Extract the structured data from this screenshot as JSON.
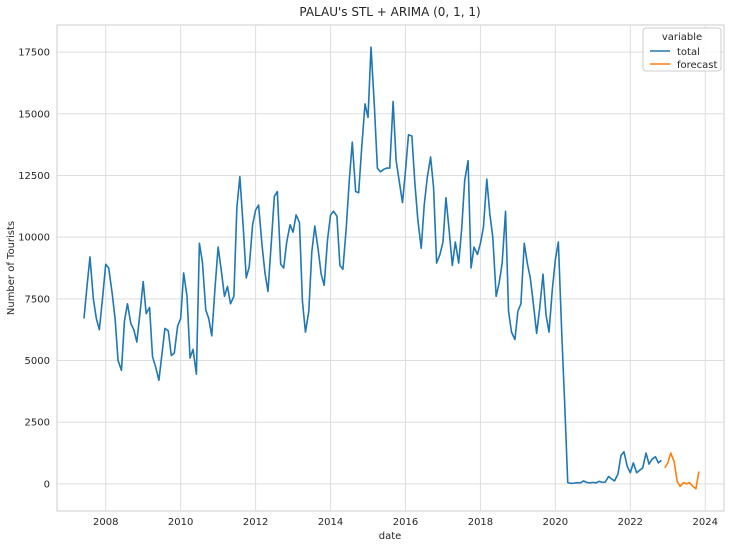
{
  "chart_data": {
    "type": "line",
    "title": "PALAU's STL + ARIMA (0, 1, 1)",
    "xlabel": "date",
    "ylabel": "Number of Tourists",
    "xlim": [
      2006.7,
      2024.5
    ],
    "ylim": [
      -1100,
      18600
    ],
    "x_ticks": [
      2008,
      2010,
      2012,
      2014,
      2016,
      2018,
      2020,
      2022,
      2024
    ],
    "y_ticks": [
      0,
      2500,
      5000,
      7500,
      10000,
      12500,
      15000,
      17500
    ],
    "grid": true,
    "legend": {
      "title": "variable",
      "placement": "top-right"
    },
    "series": [
      {
        "name": "total",
        "color": "#1f77b4",
        "points": [
          [
            2007.42,
            6700
          ],
          [
            2007.5,
            8000
          ],
          [
            2007.58,
            9200
          ],
          [
            2007.67,
            7500
          ],
          [
            2007.75,
            6700
          ],
          [
            2007.83,
            6250
          ],
          [
            2007.92,
            7600
          ],
          [
            2008.0,
            8900
          ],
          [
            2008.08,
            8750
          ],
          [
            2008.17,
            7750
          ],
          [
            2008.25,
            6700
          ],
          [
            2008.33,
            5000
          ],
          [
            2008.42,
            4600
          ],
          [
            2008.5,
            6600
          ],
          [
            2008.58,
            7300
          ],
          [
            2008.67,
            6500
          ],
          [
            2008.75,
            6250
          ],
          [
            2008.83,
            5750
          ],
          [
            2008.92,
            7000
          ],
          [
            2009.0,
            8200
          ],
          [
            2009.08,
            6900
          ],
          [
            2009.17,
            7150
          ],
          [
            2009.25,
            5150
          ],
          [
            2009.33,
            4750
          ],
          [
            2009.42,
            4200
          ],
          [
            2009.5,
            5250
          ],
          [
            2009.58,
            6300
          ],
          [
            2009.67,
            6200
          ],
          [
            2009.75,
            5200
          ],
          [
            2009.83,
            5300
          ],
          [
            2009.92,
            6400
          ],
          [
            2010.0,
            6700
          ],
          [
            2010.08,
            8550
          ],
          [
            2010.17,
            7600
          ],
          [
            2010.25,
            5100
          ],
          [
            2010.33,
            5450
          ],
          [
            2010.42,
            4450
          ],
          [
            2010.5,
            9750
          ],
          [
            2010.58,
            9000
          ],
          [
            2010.67,
            7050
          ],
          [
            2010.75,
            6700
          ],
          [
            2010.83,
            6000
          ],
          [
            2010.92,
            8000
          ],
          [
            2011.0,
            9600
          ],
          [
            2011.08,
            8700
          ],
          [
            2011.17,
            7600
          ],
          [
            2011.25,
            8000
          ],
          [
            2011.33,
            7300
          ],
          [
            2011.42,
            7600
          ],
          [
            2011.5,
            11200
          ],
          [
            2011.58,
            12450
          ],
          [
            2011.67,
            10400
          ],
          [
            2011.75,
            8350
          ],
          [
            2011.83,
            8800
          ],
          [
            2011.92,
            10500
          ],
          [
            2012.0,
            11100
          ],
          [
            2012.08,
            11300
          ],
          [
            2012.17,
            9700
          ],
          [
            2012.25,
            8550
          ],
          [
            2012.33,
            7800
          ],
          [
            2012.42,
            9800
          ],
          [
            2012.5,
            11650
          ],
          [
            2012.58,
            11850
          ],
          [
            2012.67,
            8900
          ],
          [
            2012.75,
            8750
          ],
          [
            2012.83,
            9800
          ],
          [
            2012.92,
            10500
          ],
          [
            2013.0,
            10200
          ],
          [
            2013.08,
            10900
          ],
          [
            2013.17,
            10600
          ],
          [
            2013.25,
            7400
          ],
          [
            2013.33,
            6150
          ],
          [
            2013.42,
            7000
          ],
          [
            2013.5,
            9400
          ],
          [
            2013.58,
            10450
          ],
          [
            2013.67,
            9500
          ],
          [
            2013.75,
            8500
          ],
          [
            2013.83,
            8050
          ],
          [
            2013.92,
            9900
          ],
          [
            2014.0,
            10900
          ],
          [
            2014.08,
            11050
          ],
          [
            2014.17,
            10850
          ],
          [
            2014.25,
            8850
          ],
          [
            2014.33,
            8700
          ],
          [
            2014.42,
            10400
          ],
          [
            2014.5,
            12300
          ],
          [
            2014.58,
            13850
          ],
          [
            2014.67,
            11850
          ],
          [
            2014.75,
            11800
          ],
          [
            2014.83,
            13600
          ],
          [
            2014.92,
            15400
          ],
          [
            2015.0,
            14850
          ],
          [
            2015.08,
            17700
          ],
          [
            2015.17,
            15300
          ],
          [
            2015.25,
            12800
          ],
          [
            2015.33,
            12650
          ],
          [
            2015.42,
            12750
          ],
          [
            2015.5,
            12800
          ],
          [
            2015.58,
            12800
          ],
          [
            2015.67,
            15500
          ],
          [
            2015.75,
            13100
          ],
          [
            2015.83,
            12300
          ],
          [
            2015.92,
            11400
          ],
          [
            2016.0,
            12700
          ],
          [
            2016.08,
            14150
          ],
          [
            2016.17,
            14100
          ],
          [
            2016.25,
            12200
          ],
          [
            2016.33,
            10700
          ],
          [
            2016.42,
            9550
          ],
          [
            2016.5,
            11300
          ],
          [
            2016.58,
            12400
          ],
          [
            2016.67,
            13250
          ],
          [
            2016.75,
            12000
          ],
          [
            2016.83,
            8950
          ],
          [
            2016.92,
            9300
          ],
          [
            2017.0,
            9800
          ],
          [
            2017.08,
            11600
          ],
          [
            2017.17,
            10200
          ],
          [
            2017.25,
            8850
          ],
          [
            2017.33,
            9800
          ],
          [
            2017.42,
            8950
          ],
          [
            2017.5,
            10350
          ],
          [
            2017.58,
            12300
          ],
          [
            2017.67,
            13100
          ],
          [
            2017.75,
            8750
          ],
          [
            2017.83,
            9600
          ],
          [
            2017.92,
            9300
          ],
          [
            2018.0,
            9750
          ],
          [
            2018.08,
            10400
          ],
          [
            2018.17,
            12350
          ],
          [
            2018.25,
            10950
          ],
          [
            2018.33,
            10000
          ],
          [
            2018.42,
            7600
          ],
          [
            2018.5,
            8150
          ],
          [
            2018.58,
            8950
          ],
          [
            2018.67,
            11050
          ],
          [
            2018.75,
            7000
          ],
          [
            2018.83,
            6150
          ],
          [
            2018.92,
            5850
          ],
          [
            2019.0,
            7000
          ],
          [
            2019.08,
            7300
          ],
          [
            2019.17,
            9750
          ],
          [
            2019.25,
            8950
          ],
          [
            2019.33,
            8350
          ],
          [
            2019.42,
            7200
          ],
          [
            2019.5,
            6100
          ],
          [
            2019.58,
            7100
          ],
          [
            2019.67,
            8500
          ],
          [
            2019.75,
            6850
          ],
          [
            2019.83,
            6150
          ],
          [
            2019.92,
            7900
          ],
          [
            2020.0,
            9100
          ],
          [
            2020.08,
            9800
          ],
          [
            2020.17,
            6100
          ],
          [
            2020.25,
            3200
          ],
          [
            2020.33,
            50
          ],
          [
            2020.42,
            20
          ],
          [
            2020.5,
            30
          ],
          [
            2020.58,
            50
          ],
          [
            2020.67,
            40
          ],
          [
            2020.75,
            120
          ],
          [
            2020.83,
            60
          ],
          [
            2020.92,
            40
          ],
          [
            2021.0,
            60
          ],
          [
            2021.08,
            40
          ],
          [
            2021.17,
            100
          ],
          [
            2021.25,
            60
          ],
          [
            2021.33,
            70
          ],
          [
            2021.42,
            300
          ],
          [
            2021.5,
            200
          ],
          [
            2021.58,
            120
          ],
          [
            2021.67,
            400
          ],
          [
            2021.75,
            1150
          ],
          [
            2021.83,
            1300
          ],
          [
            2021.92,
            700
          ],
          [
            2022.0,
            450
          ],
          [
            2022.08,
            850
          ],
          [
            2022.17,
            450
          ],
          [
            2022.25,
            550
          ],
          [
            2022.33,
            650
          ],
          [
            2022.42,
            1250
          ],
          [
            2022.5,
            800
          ],
          [
            2022.58,
            1000
          ],
          [
            2022.67,
            1100
          ],
          [
            2022.75,
            850
          ],
          [
            2022.83,
            950
          ]
        ]
      },
      {
        "name": "forecast",
        "color": "#ff7f0e",
        "points": [
          [
            2022.92,
            650
          ],
          [
            2023.0,
            850
          ],
          [
            2023.08,
            1250
          ],
          [
            2023.17,
            900
          ],
          [
            2023.25,
            100
          ],
          [
            2023.33,
            -100
          ],
          [
            2023.42,
            50
          ],
          [
            2023.5,
            0
          ],
          [
            2023.58,
            50
          ],
          [
            2023.67,
            -100
          ],
          [
            2023.75,
            -200
          ],
          [
            2023.83,
            500
          ]
        ]
      }
    ]
  }
}
